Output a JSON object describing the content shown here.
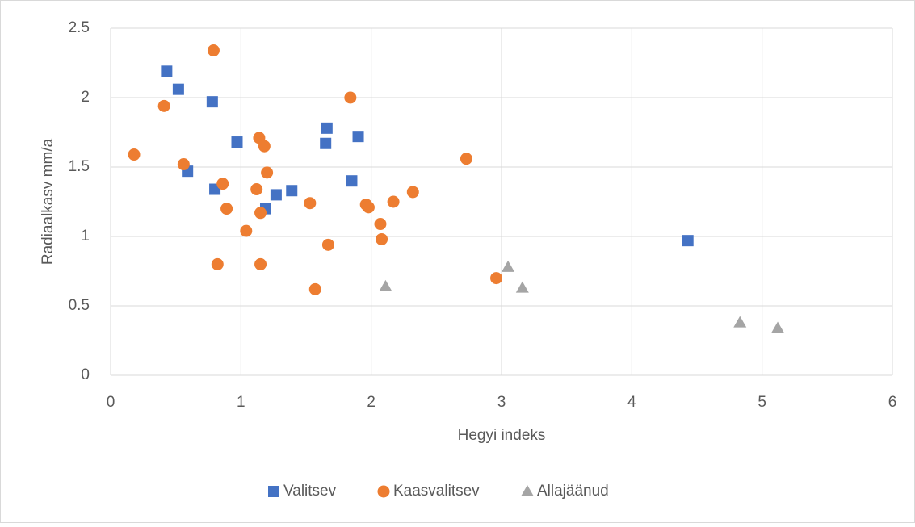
{
  "chart_data": {
    "type": "scatter",
    "x_label": "Hegyi indeks",
    "y_label": "Radiaalkasv mm/a",
    "xlim": [
      0,
      6
    ],
    "xticks": [
      0,
      1,
      2,
      3,
      4,
      5,
      6
    ],
    "ylim": [
      0,
      2.5
    ],
    "yticks": [
      0,
      0.5,
      1,
      1.5,
      2,
      2.5
    ],
    "grid": true,
    "legend": "bottom",
    "series": [
      {
        "name": "Valitsev",
        "color": "#4472c4",
        "marker": "square",
        "x": [
          0.43,
          0.52,
          0.78,
          0.59,
          0.8,
          0.97,
          1.19,
          1.27,
          1.39,
          1.66,
          1.65,
          1.9,
          1.85,
          4.43
        ],
        "values": [
          2.19,
          2.06,
          1.97,
          1.47,
          1.34,
          1.68,
          1.2,
          1.3,
          1.33,
          1.78,
          1.67,
          1.72,
          1.4,
          0.97
        ]
      },
      {
        "name": "Kaasvalitsev",
        "color": "#ed7d31",
        "marker": "circle",
        "x": [
          0.18,
          0.41,
          0.56,
          0.79,
          0.86,
          0.89,
          0.82,
          1.04,
          1.14,
          1.18,
          1.2,
          1.12,
          1.15,
          1.15,
          1.53,
          1.57,
          1.67,
          1.84,
          1.96,
          1.98,
          2.07,
          2.08,
          2.17,
          2.32,
          2.73,
          2.96
        ],
        "values": [
          1.59,
          1.94,
          1.52,
          2.34,
          1.38,
          1.2,
          0.8,
          1.04,
          1.71,
          1.65,
          1.46,
          1.34,
          1.17,
          0.8,
          1.24,
          0.62,
          0.94,
          2.0,
          1.23,
          1.21,
          1.09,
          0.98,
          1.25,
          1.32,
          1.56,
          0.7
        ]
      },
      {
        "name": "Allajäänud",
        "color": "#a5a5a5",
        "marker": "triangle",
        "x": [
          2.11,
          3.05,
          3.16,
          4.83,
          5.12
        ],
        "values": [
          0.64,
          0.78,
          0.63,
          0.38,
          0.34
        ]
      }
    ]
  }
}
